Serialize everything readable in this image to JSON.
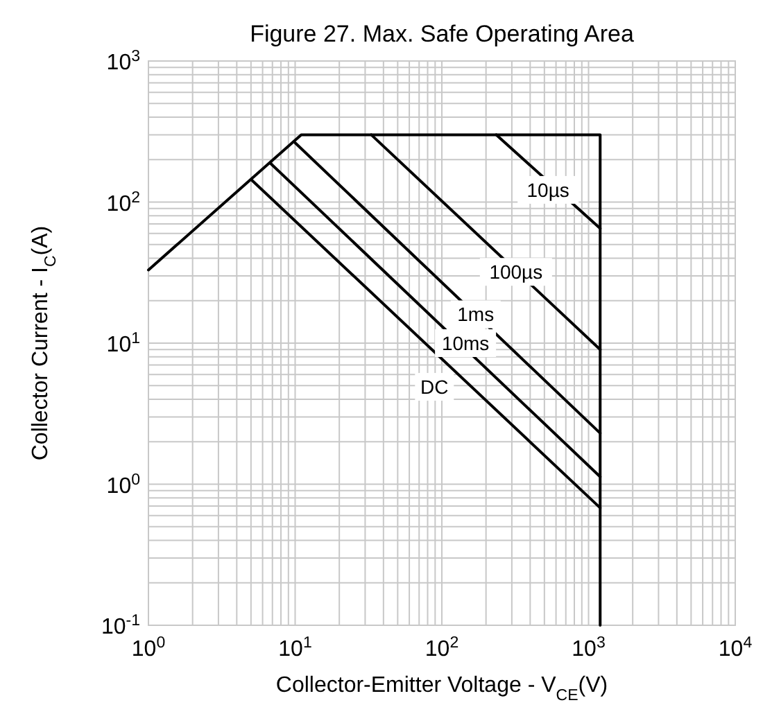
{
  "chart_data": {
    "type": "line",
    "title": "Figure 27. Max. Safe Operating Area",
    "xlabel": "Collector-Emitter Voltage - V$_{CE}$(V)",
    "ylabel": "Collector Current - I$_{C}$(A)",
    "log": "xy",
    "grid": true,
    "marker": "none",
    "line_style": "solid",
    "xlim": [
      1,
      10000
    ],
    "xticks": [
      {
        "value": 1,
        "label": "10$^{0}$"
      },
      {
        "value": 10,
        "label": "10$^{1}$"
      },
      {
        "value": 100,
        "label": "10$^{2}$"
      },
      {
        "value": 1000,
        "label": "10$^{3}$"
      },
      {
        "value": 10000,
        "label": "10$^{4}$"
      }
    ],
    "ylim": [
      0.1,
      1000
    ],
    "yticks": [
      {
        "value": 0.1,
        "label": "10$^{-1}$"
      },
      {
        "value": 1,
        "label": "10$^{0}$"
      },
      {
        "value": 10,
        "label": "10$^{1}$"
      },
      {
        "value": 100,
        "label": "10$^{2}$"
      },
      {
        "value": 1000,
        "label": "10$^{3}$"
      }
    ],
    "series": [
      {
        "color": "#000000",
        "x": [
          1,
          11,
          1200,
          1200
        ],
        "values": [
          33,
          300,
          300,
          0.1
        ]
      },
      {
        "color": "#000000",
        "x": [
          235,
          1200
        ],
        "values": [
          300,
          65
        ]
      },
      {
        "color": "#000000",
        "x": [
          33,
          1200
        ],
        "values": [
          300,
          9
        ]
      },
      {
        "color": "#000000",
        "x": [
          10,
          1200
        ],
        "values": [
          263,
          2.3
        ]
      },
      {
        "color": "#000000",
        "x": [
          6.8,
          1200
        ],
        "values": [
          188,
          1.13
        ]
      },
      {
        "color": "#000000",
        "x": [
          5.1,
          1200
        ],
        "values": [
          142,
          0.68
        ]
      }
    ],
    "annotations": [
      {
        "text": "10µs",
        "x": 530,
        "y": 122
      },
      {
        "text": "100µs",
        "x": 320,
        "y": 32
      },
      {
        "text": "1ms",
        "x": 170,
        "y": 16
      },
      {
        "text": "10ms",
        "x": 145,
        "y": 10
      },
      {
        "text": "DC",
        "x": 89,
        "y": 4.9
      }
    ]
  }
}
